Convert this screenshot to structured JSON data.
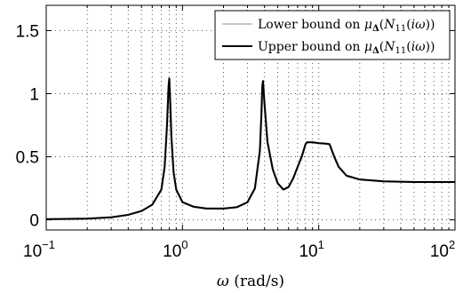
{
  "chart_data": {
    "type": "line",
    "xscale": "log",
    "xlim": [
      0.1,
      100
    ],
    "ylim": [
      -0.08,
      1.7
    ],
    "grid": true,
    "legend_position": "top-right",
    "xlabel": {
      "symbol": "ω",
      "unit": "(rad/s)"
    },
    "ylabel": "",
    "title": "",
    "x_ticks": [
      {
        "value": 0.1,
        "base": "10",
        "exp": "−1"
      },
      {
        "value": 1,
        "base": "10",
        "exp": "0"
      },
      {
        "value": 10,
        "base": "10",
        "exp": "1"
      },
      {
        "value": 100,
        "base": "10",
        "exp": "2"
      }
    ],
    "y_ticks": [
      {
        "value": 0,
        "label": "0"
      },
      {
        "value": 0.5,
        "label": "0.5"
      },
      {
        "value": 1,
        "label": "1"
      },
      {
        "value": 1.5,
        "label": "1.5"
      }
    ],
    "series": [
      {
        "name": "Lower bound on μΔ(N11(iω))",
        "color": "#c8c8c8",
        "x": [
          0.1,
          0.2,
          0.3,
          0.4,
          0.5,
          0.6,
          0.7,
          0.74,
          0.77,
          0.79,
          0.8,
          0.81,
          0.83,
          0.86,
          0.9,
          1.0,
          1.2,
          1.5,
          2.0,
          2.5,
          3.0,
          3.4,
          3.7,
          3.8,
          3.85,
          3.9,
          4.0,
          4.2,
          4.6,
          5.0,
          5.5,
          6.0,
          6.5,
          7.0,
          7.5,
          8.0,
          8.2,
          9.0,
          10.0,
          11.0,
          12.0,
          13.0,
          14.0,
          16.0,
          20.0,
          30.0,
          50.0,
          100.0
        ],
        "values": [
          0.005,
          0.01,
          0.02,
          0.04,
          0.07,
          0.12,
          0.24,
          0.42,
          0.75,
          1.05,
          1.12,
          0.98,
          0.65,
          0.38,
          0.24,
          0.14,
          0.105,
          0.09,
          0.09,
          0.1,
          0.14,
          0.25,
          0.55,
          0.85,
          1.05,
          1.1,
          0.92,
          0.62,
          0.4,
          0.29,
          0.24,
          0.26,
          0.33,
          0.42,
          0.5,
          0.6,
          0.615,
          0.615,
          0.608,
          0.605,
          0.6,
          0.5,
          0.42,
          0.35,
          0.32,
          0.305,
          0.3,
          0.3
        ]
      },
      {
        "name": "Upper bound on μΔ(N11(iω))",
        "color": "#000000",
        "x": [
          0.1,
          0.2,
          0.3,
          0.4,
          0.5,
          0.6,
          0.7,
          0.74,
          0.77,
          0.79,
          0.8,
          0.81,
          0.83,
          0.86,
          0.9,
          1.0,
          1.2,
          1.5,
          2.0,
          2.5,
          3.0,
          3.4,
          3.7,
          3.8,
          3.85,
          3.9,
          4.0,
          4.2,
          4.6,
          5.0,
          5.5,
          6.0,
          6.5,
          7.0,
          7.5,
          8.0,
          8.2,
          9.0,
          10.0,
          11.0,
          12.0,
          13.0,
          14.0,
          16.0,
          20.0,
          30.0,
          50.0,
          100.0
        ],
        "values": [
          0.005,
          0.01,
          0.02,
          0.04,
          0.07,
          0.12,
          0.24,
          0.42,
          0.75,
          1.05,
          1.12,
          0.98,
          0.65,
          0.38,
          0.24,
          0.14,
          0.105,
          0.09,
          0.09,
          0.1,
          0.14,
          0.25,
          0.55,
          0.85,
          1.05,
          1.1,
          0.92,
          0.62,
          0.4,
          0.29,
          0.24,
          0.26,
          0.33,
          0.42,
          0.5,
          0.6,
          0.615,
          0.615,
          0.608,
          0.605,
          0.6,
          0.5,
          0.42,
          0.35,
          0.32,
          0.305,
          0.3,
          0.3
        ]
      }
    ]
  }
}
